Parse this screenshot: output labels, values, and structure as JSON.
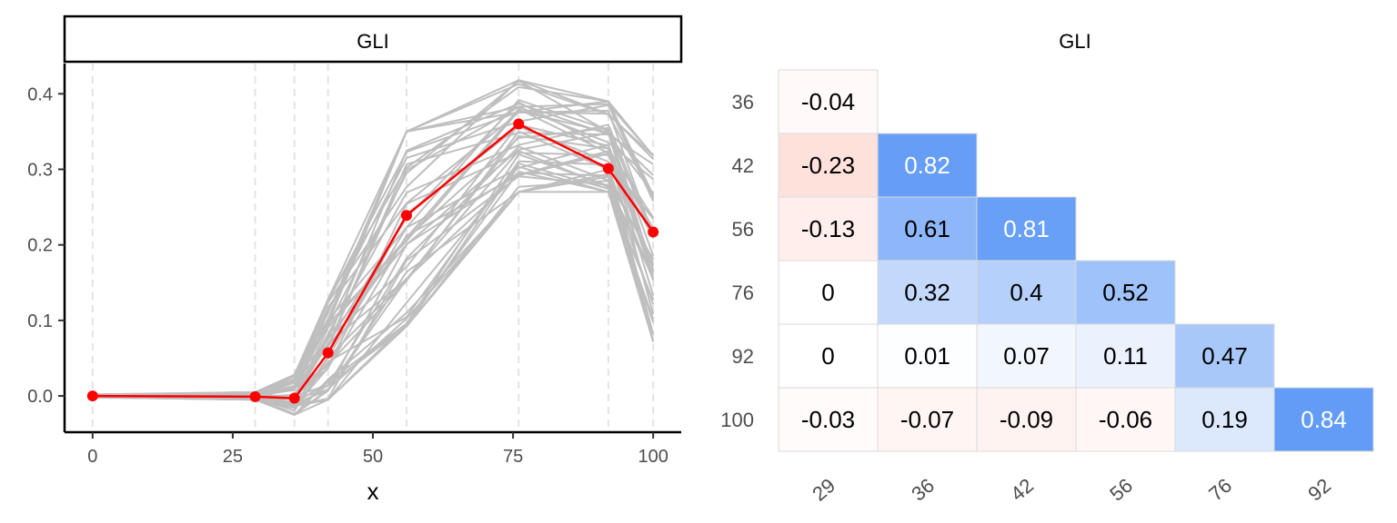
{
  "chart_data": [
    {
      "type": "line",
      "strip_title": "GLI",
      "xlabel": "x",
      "ylabel": "",
      "xlim": [
        -5,
        105
      ],
      "ylim": [
        -0.048,
        0.44
      ],
      "grid": "vertical dashed lines at each x value",
      "x_ticks": [
        0,
        25,
        50,
        75,
        100
      ],
      "y_ticks": [
        0.0,
        0.1,
        0.2,
        0.3,
        0.4
      ],
      "x_tick_labels": [
        "0",
        "25",
        "50",
        "75",
        "100"
      ],
      "y_tick_labels": [
        "0.0",
        "0.1",
        "0.2",
        "0.3",
        "0.4"
      ],
      "x": [
        0,
        29,
        36,
        42,
        56,
        76,
        92,
        100
      ],
      "highlight_series": {
        "color": "#ff0000",
        "values": [
          0.0,
          -0.001,
          -0.003,
          0.057,
          0.239,
          0.36,
          0.301,
          0.217
        ]
      },
      "background_series": {
        "color": "#bebebe",
        "count": 40,
        "low": [
          -0.002,
          -0.005,
          -0.025,
          -0.005,
          0.092,
          0.27,
          0.27,
          0.072
        ],
        "high": [
          0.002,
          0.005,
          0.028,
          0.128,
          0.35,
          0.418,
          0.39,
          0.318
        ]
      }
    },
    {
      "type": "heatmap",
      "title": "GLI",
      "row_labels": [
        "36",
        "42",
        "56",
        "76",
        "92",
        "100"
      ],
      "col_labels": [
        "29",
        "36",
        "42",
        "56",
        "76",
        "92"
      ],
      "values": [
        [
          -0.04,
          null,
          null,
          null,
          null,
          null
        ],
        [
          -0.23,
          0.82,
          null,
          null,
          null,
          null
        ],
        [
          -0.13,
          0.61,
          0.81,
          null,
          null,
          null
        ],
        [
          0,
          0.32,
          0.4,
          0.52,
          null,
          null
        ],
        [
          0,
          0.01,
          0.07,
          0.11,
          0.47,
          null
        ],
        [
          -0.03,
          -0.07,
          -0.09,
          -0.06,
          0.19,
          0.84
        ]
      ],
      "colors": {
        "positive": "#4589f5",
        "negative": "#ff7b66",
        "zero": "#ffffff"
      }
    }
  ]
}
